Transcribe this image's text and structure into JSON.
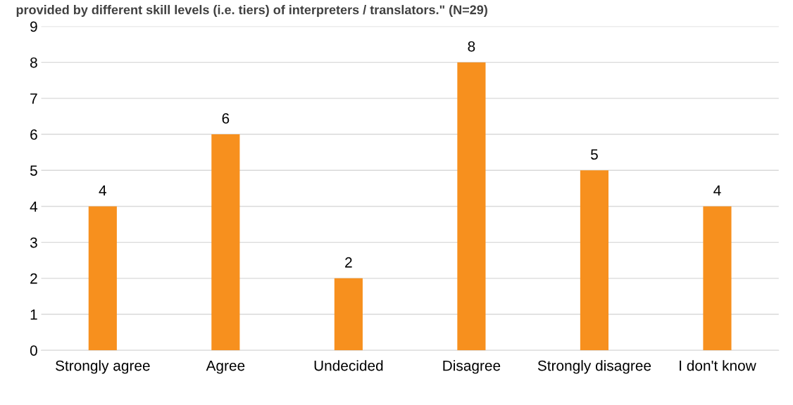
{
  "chart_data": {
    "type": "bar",
    "title": "provided by different skill levels (i.e. tiers) of interpreters / translators.\" (N=29)",
    "categories": [
      "Strongly agree",
      "Agree",
      "Undecided",
      "Disagree",
      "Strongly disagree",
      "I don't know"
    ],
    "values": [
      4,
      6,
      2,
      8,
      5,
      4
    ],
    "color": "#f7901e",
    "ylim": [
      0,
      9
    ],
    "yticks": [
      0,
      1,
      2,
      3,
      4,
      5,
      6,
      7,
      8,
      9
    ],
    "grid": "y",
    "data_labels": true
  }
}
